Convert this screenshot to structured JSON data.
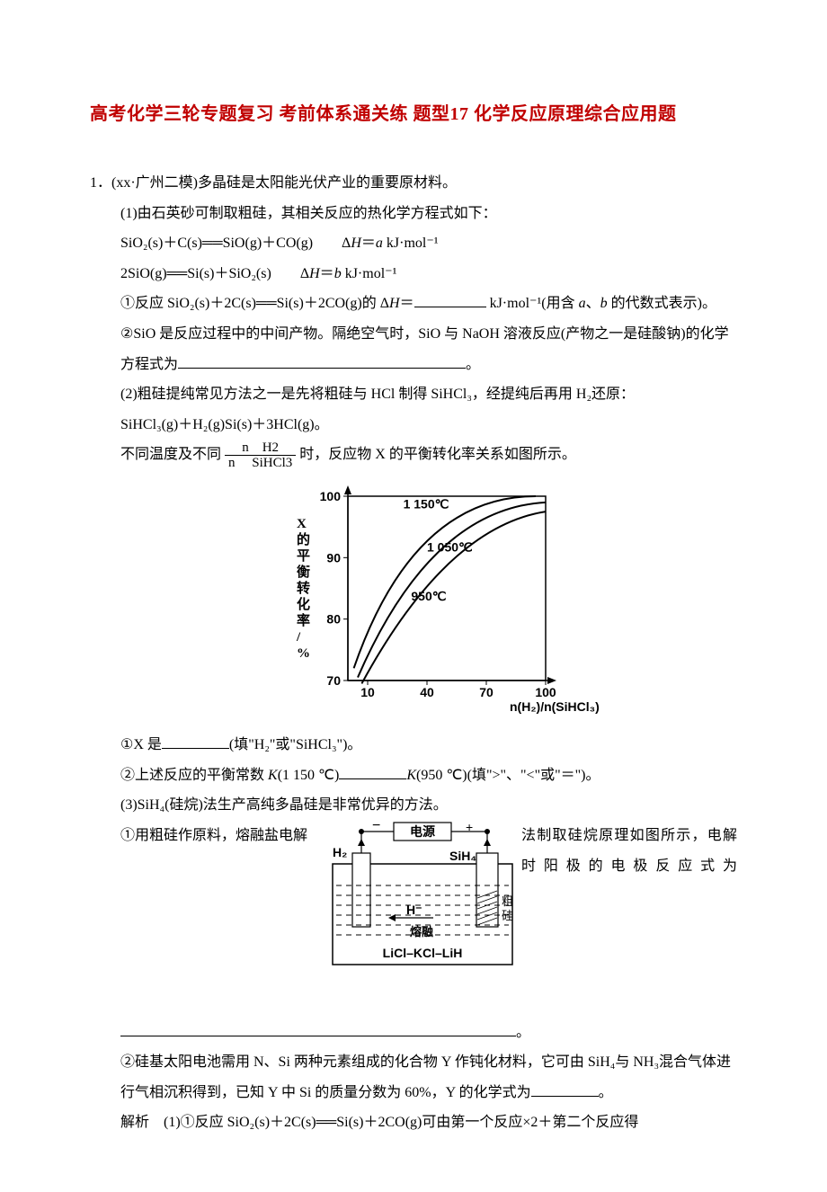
{
  "title": "高考化学三轮专题复习 考前体系通关练 题型17 化学反应原理综合应用题",
  "q1": {
    "num": "1．(xx·广州二模)多晶硅是太阳能光伏产业的重要原材料。",
    "p1_intro": "(1)由石英砂可制取粗硅，其相关反应的热化学方程式如下：",
    "eq1": "SiO₂(s)＋C(s)══SiO(g)＋CO(g)　　Δ<i>H</i>＝<i>a</i> kJ·mol⁻¹",
    "eq2": "2SiO(g)══Si(s)＋SiO₂(s)　　Δ<i>H</i>＝<i>b</i> kJ·mol⁻¹",
    "q1_1_a": "①反应 SiO₂(s)＋2C(s)══Si(s)＋2CO(g)的 Δ<i>H</i>＝",
    "q1_1_b": " kJ·mol⁻¹(用含 <i>a</i>、<i>b</i> 的代数式表示)。",
    "q1_2_a": "②SiO 是反应过程中的中间产物。隔绝空气时，SiO 与 NaOH 溶液反应(产物之一是硅酸钠)的化学方程式为",
    "q1_2_b": "。",
    "p2_intro": "(2)粗硅提纯常见方法之一是先将粗硅与 HCl 制得 SiHCl₃，经提纯后再用 H₂还原：",
    "eq3": "SiHCl₃(g)＋H₂(g)Si(s)＋3HCl(g)。",
    "p2_line_a": "不同温度及不同",
    "frac_num": "n　H2",
    "frac_den": "n　 SiHCl3",
    "p2_line_b": "时，反应物 X 的平衡转化率关系如图所示。",
    "q2_1_a": "①X 是",
    "q2_1_b": "(填\"H₂\"或\"SiHCl₃\")。",
    "q2_2_a": "②上述反应的平衡常数 <i>K</i>(1 150 ℃)",
    "q2_2_b": "<i>K</i>(950 ℃)(填\">\"、\"<\"或\"＝\")。",
    "p3_intro": "(3)SiH₄(硅烷)法生产高纯多晶硅是非常优异的方法。",
    "q3_1_left": "①用粗硅作原料，熔融盐电解",
    "q3_1_right": "法制取硅烷原理如图所示，电解",
    "q3_1_line2_left": "时阳极的电极反应式为",
    "q3_1_end": "。",
    "q3_2_a": "②硅基太阳电池需用 N、Si 两种元素组成的化合物 Y 作钝化材料，它可由 SiH₄与 NH₃混合气体进行气相沉积得到，已知 Y 中 Si 的质量分数为 60%，Y 的化学式为",
    "q3_2_b": "。",
    "solution": "解析　(1)①反应 SiO₂(s)＋2C(s)══Si(s)＋2CO(g)可由第一个反应×2＋第二个反应得"
  },
  "chart": {
    "yaxis_label": "X的平衡转化率/%",
    "xaxis_label": "n(H₂)/n(SiHCl₃)",
    "yticks": [
      "70",
      "80",
      "90",
      "100"
    ],
    "xticks": [
      "10",
      "40",
      "70",
      "100"
    ],
    "curve_labels": [
      "1 150℃",
      "1 050℃",
      "950℃"
    ],
    "stroke": "#000000",
    "bg": "#ffffff",
    "fontsize_tick": 14,
    "fontsize_label": 15
  },
  "diagram": {
    "labels": {
      "power": "电源",
      "minus": "−",
      "plus": "+",
      "h2": "H₂",
      "sih4": "SiH₄",
      "hminus": "H⁻",
      "melt": "熔融",
      "crude_si_1": "粗",
      "crude_si_2": "硅",
      "salts": "LiCl–KCl–LiH"
    },
    "stroke": "#000000",
    "bg": "#ffffff"
  }
}
